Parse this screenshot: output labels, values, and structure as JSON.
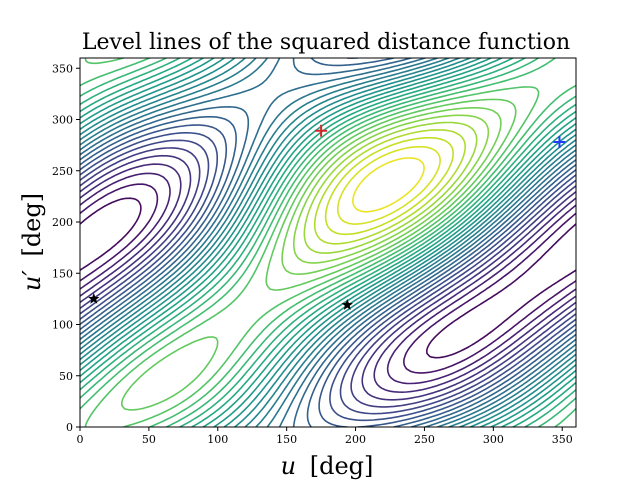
{
  "chart_data": {
    "type": "contour",
    "title": "Level lines of the squared distance function",
    "xlabel": {
      "symbol": "u",
      "unit": "[deg]"
    },
    "ylabel": {
      "symbol": "u′",
      "unit": "[deg]"
    },
    "xlim": [
      0,
      360
    ],
    "ylim": [
      0,
      360
    ],
    "xticks": [
      "0",
      "50",
      "100",
      "150",
      "200",
      "250",
      "300",
      "350"
    ],
    "yticks": [
      "0",
      "50",
      "100",
      "150",
      "200",
      "250",
      "300",
      "350"
    ],
    "grid": false,
    "colormap": "viridis",
    "levels": 32,
    "markers": [
      {
        "kind": "plus",
        "x": 175,
        "y": 289,
        "color": "#d62728"
      },
      {
        "kind": "plus",
        "x": 348,
        "y": 278,
        "color": "#1f3dff"
      },
      {
        "kind": "star",
        "x": 10,
        "y": 125,
        "color": "#000000"
      },
      {
        "kind": "star",
        "x": 194,
        "y": 119,
        "color": "#000000"
      }
    ]
  }
}
